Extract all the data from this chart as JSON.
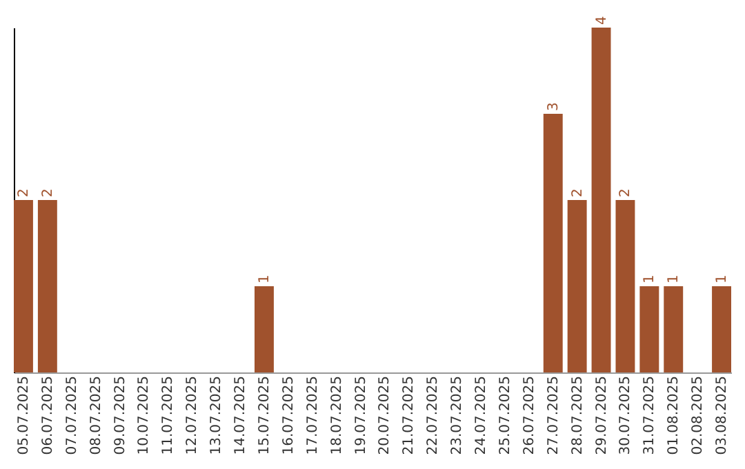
{
  "chart_data": {
    "type": "bar",
    "categories": [
      "05.07.2025",
      "06.07.2025",
      "07.07.2025",
      "08.07.2025",
      "09.07.2025",
      "10.07.2025",
      "11.07.2025",
      "12.07.2025",
      "13.07.2025",
      "14.07.2025",
      "15.07.2025",
      "16.07.2025",
      "17.07.2025",
      "18.07.2025",
      "19.07.2025",
      "20.07.2025",
      "21.07.2025",
      "22.07.2025",
      "23.07.2025",
      "24.07.2025",
      "25.07.2025",
      "26.07.2025",
      "27.07.2025",
      "28.07.2025",
      "29.07.2025",
      "30.07.2025",
      "31.07.2025",
      "01.08.2025",
      "02.08.2025",
      "03.08.2025"
    ],
    "values": [
      2,
      2,
      0,
      0,
      0,
      0,
      0,
      0,
      0,
      0,
      1,
      0,
      0,
      0,
      0,
      0,
      0,
      0,
      0,
      0,
      0,
      0,
      3,
      2,
      4,
      2,
      1,
      1,
      0,
      1
    ],
    "value_labels": [
      "2",
      "2",
      null,
      null,
      null,
      null,
      null,
      null,
      null,
      null,
      "1",
      null,
      null,
      null,
      null,
      null,
      null,
      null,
      null,
      null,
      null,
      null,
      "3",
      "2",
      "4",
      "2",
      "1",
      "1",
      null,
      "1"
    ],
    "color": "#a0522d",
    "ylim": [
      0,
      4
    ],
    "tick_labels": "x",
    "grid": false
  }
}
